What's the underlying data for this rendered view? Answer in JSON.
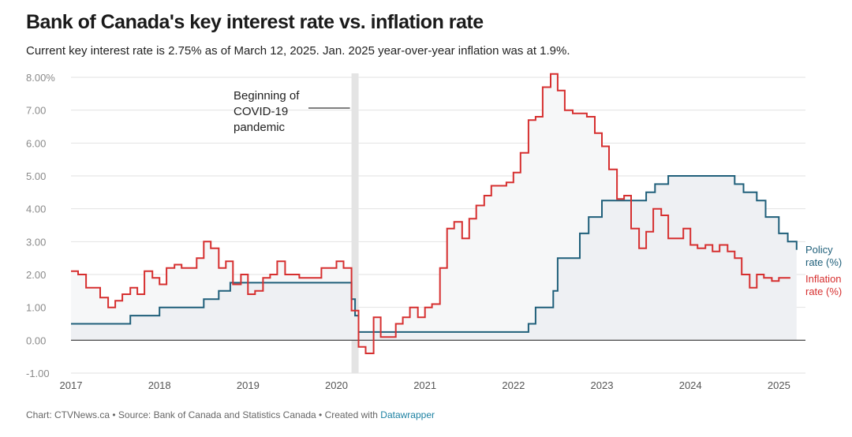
{
  "title": "Bank of Canada's key interest rate vs. inflation rate",
  "subtitle": "Current key interest rate is 2.75% as of March 12, 2025. Jan. 2025 year-over-year inflation was at 1.9%.",
  "footer": {
    "text": "Chart: CTVNews.ca • Source: Bank of Canada and Statistics Canada • Created with ",
    "link": "Datawrapper"
  },
  "colors": {
    "policy": "#1f5f7a",
    "inflation": "#d62f2f",
    "band": "#e4e4e4",
    "fill": "#eef0f3"
  },
  "chart_data": {
    "type": "line",
    "step": true,
    "title": "Bank of Canada's key interest rate vs. inflation rate",
    "ylim": [
      -1,
      8
    ],
    "yticks": [
      {
        "v": 8,
        "label": "8.00%"
      },
      {
        "v": 7,
        "label": "7.00"
      },
      {
        "v": 6,
        "label": "6.00"
      },
      {
        "v": 5,
        "label": "5.00"
      },
      {
        "v": 4,
        "label": "4.00"
      },
      {
        "v": 3,
        "label": "3.00"
      },
      {
        "v": 2,
        "label": "2.00"
      },
      {
        "v": 1,
        "label": "1.00"
      },
      {
        "v": 0,
        "label": "0.00"
      },
      {
        "v": -1,
        "label": "-1.00"
      }
    ],
    "xlim": [
      2017.0,
      2025.3
    ],
    "xticks": [
      "2017",
      "2018",
      "2019",
      "2020",
      "2021",
      "2022",
      "2023",
      "2024",
      "2025"
    ],
    "grid": true,
    "annotation": {
      "lines": [
        "Beginning of",
        "COVID-19",
        "pandemic"
      ],
      "x_start": 2020.17,
      "x_end": 2020.25
    },
    "series": [
      {
        "name": "Policy rate (%)",
        "label_lines": [
          "Policy",
          "rate (%)"
        ],
        "x": [
          2017.0,
          2017.5,
          2017.67,
          2018.0,
          2018.33,
          2018.5,
          2018.67,
          2018.8,
          2019.0,
          2019.5,
          2020.0,
          2020.17,
          2020.21,
          2020.25,
          2020.5,
          2021.0,
          2021.5,
          2022.0,
          2022.17,
          2022.25,
          2022.33,
          2022.45,
          2022.5,
          2022.6,
          2022.75,
          2022.85,
          2023.0,
          2023.5,
          2023.6,
          2023.75,
          2024.0,
          2024.4,
          2024.5,
          2024.6,
          2024.75,
          2024.85,
          2025.0,
          2025.1,
          2025.2
        ],
        "values": [
          0.5,
          0.5,
          0.75,
          1.0,
          1.0,
          1.25,
          1.5,
          1.75,
          1.75,
          1.75,
          1.75,
          1.25,
          0.75,
          0.25,
          0.25,
          0.25,
          0.25,
          0.25,
          0.5,
          1.0,
          1.0,
          1.5,
          2.5,
          2.5,
          3.25,
          3.75,
          4.25,
          4.5,
          4.75,
          5.0,
          5.0,
          5.0,
          4.75,
          4.5,
          4.25,
          3.75,
          3.25,
          3.0,
          2.75
        ]
      },
      {
        "name": "Inflation rate (%)",
        "label_lines": [
          "Inflation",
          "rate (%)"
        ],
        "x": [
          2017.0,
          2017.08,
          2017.17,
          2017.25,
          2017.33,
          2017.42,
          2017.5,
          2017.58,
          2017.67,
          2017.75,
          2017.83,
          2017.92,
          2018.0,
          2018.08,
          2018.17,
          2018.25,
          2018.33,
          2018.42,
          2018.5,
          2018.58,
          2018.67,
          2018.75,
          2018.83,
          2018.92,
          2019.0,
          2019.08,
          2019.17,
          2019.25,
          2019.33,
          2019.42,
          2019.5,
          2019.58,
          2019.67,
          2019.75,
          2019.83,
          2019.92,
          2020.0,
          2020.08,
          2020.17,
          2020.25,
          2020.33,
          2020.42,
          2020.5,
          2020.58,
          2020.67,
          2020.75,
          2020.83,
          2020.92,
          2021.0,
          2021.08,
          2021.17,
          2021.25,
          2021.33,
          2021.42,
          2021.5,
          2021.58,
          2021.67,
          2021.75,
          2021.83,
          2021.92,
          2022.0,
          2022.08,
          2022.17,
          2022.25,
          2022.33,
          2022.42,
          2022.5,
          2022.58,
          2022.67,
          2022.75,
          2022.83,
          2022.92,
          2023.0,
          2023.08,
          2023.17,
          2023.25,
          2023.33,
          2023.42,
          2023.5,
          2023.58,
          2023.67,
          2023.75,
          2023.83,
          2023.92,
          2024.0,
          2024.08,
          2024.17,
          2024.25,
          2024.33,
          2024.42,
          2024.5,
          2024.58,
          2024.67,
          2024.75,
          2024.83,
          2024.92,
          2025.0,
          2025.08
        ],
        "values": [
          2.1,
          2.0,
          1.6,
          1.6,
          1.3,
          1.0,
          1.2,
          1.4,
          1.6,
          1.4,
          2.1,
          1.9,
          1.7,
          2.2,
          2.3,
          2.2,
          2.2,
          2.5,
          3.0,
          2.8,
          2.2,
          2.4,
          1.7,
          2.0,
          1.4,
          1.5,
          1.9,
          2.0,
          2.4,
          2.0,
          2.0,
          1.9,
          1.9,
          1.9,
          2.2,
          2.2,
          2.4,
          2.2,
          0.9,
          -0.2,
          -0.4,
          0.7,
          0.1,
          0.1,
          0.5,
          0.7,
          1.0,
          0.7,
          1.0,
          1.1,
          2.2,
          3.4,
          3.6,
          3.1,
          3.7,
          4.1,
          4.4,
          4.7,
          4.7,
          4.8,
          5.1,
          5.7,
          6.7,
          6.8,
          7.7,
          8.1,
          7.6,
          7.0,
          6.9,
          6.9,
          6.8,
          6.3,
          5.9,
          5.2,
          4.3,
          4.4,
          3.4,
          2.8,
          3.3,
          4.0,
          3.8,
          3.1,
          3.1,
          3.4,
          2.9,
          2.8,
          2.9,
          2.7,
          2.9,
          2.7,
          2.5,
          2.0,
          1.6,
          2.0,
          1.9,
          1.8,
          1.9,
          1.9
        ]
      }
    ]
  }
}
